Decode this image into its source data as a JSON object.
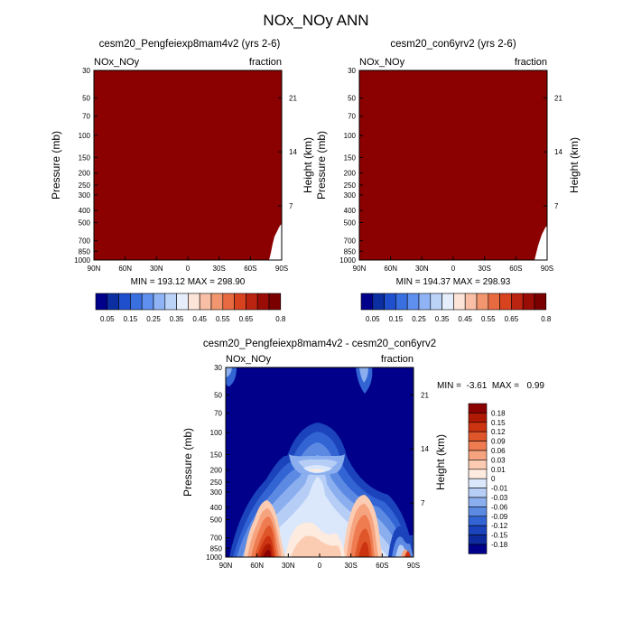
{
  "main_title": "NOx_NOy ANN",
  "chart_data": [
    {
      "type": "heatmap",
      "title": "cesm20_Pengfeiexp8mam4v2 (yrs 2-6)",
      "left_label": "NOx_NOy",
      "right_label": "fraction",
      "ylabel": "Pressure (mb)",
      "ylabel_right": "Height (km)",
      "x_ticks": [
        "90N",
        "60N",
        "30N",
        "0",
        "30S",
        "60S",
        "90S"
      ],
      "y_ticks": [
        "30",
        "50",
        "70",
        "100",
        "150",
        "200",
        "250",
        "300",
        "400",
        "500",
        "700",
        "850",
        "1000"
      ],
      "height_ticks": [
        "21",
        "14",
        "7"
      ],
      "stats": "MIN = 193.12  MAX = 298.90",
      "field_color": "#8b0000",
      "colorbar_labels": [
        "0.05",
        "0.15",
        "0.25",
        "0.35",
        "0.45",
        "0.55",
        "0.65",
        "0.8"
      ]
    },
    {
      "type": "heatmap",
      "title": "cesm20_con6yrv2 (yrs 2-6)",
      "left_label": "NOx_NOy",
      "right_label": "fraction",
      "ylabel": "Pressure (mb)",
      "ylabel_right": "Height (km)",
      "x_ticks": [
        "90N",
        "60N",
        "30N",
        "0",
        "30S",
        "60S",
        "90S"
      ],
      "y_ticks": [
        "30",
        "50",
        "70",
        "100",
        "150",
        "200",
        "250",
        "300",
        "400",
        "500",
        "700",
        "850",
        "1000"
      ],
      "height_ticks": [
        "21",
        "14",
        "7"
      ],
      "stats": "MIN = 194.37  MAX = 298.93",
      "field_color": "#8b0000",
      "colorbar_labels": [
        "0.05",
        "0.15",
        "0.25",
        "0.35",
        "0.45",
        "0.55",
        "0.65",
        "0.8"
      ]
    },
    {
      "type": "heatmap",
      "title": "cesm20_Pengfeiexp8mam4v2 - cesm20_con6yrv2",
      "left_label": "NOx_NOy",
      "right_label": "fraction",
      "ylabel": "Pressure (mb)",
      "ylabel_right": "Height (km)",
      "x_ticks": [
        "90N",
        "60N",
        "30N",
        "0",
        "30S",
        "60S",
        "90S"
      ],
      "y_ticks": [
        "30",
        "50",
        "70",
        "100",
        "150",
        "200",
        "250",
        "300",
        "400",
        "500",
        "700",
        "850",
        "1000"
      ],
      "height_ticks": [
        "21",
        "14",
        "7"
      ],
      "stats": "MIN =  -3.61  MAX =   0.99",
      "colorbar_labels": [
        "0.18",
        "0.15",
        "0.12",
        "0.09",
        "0.06",
        "0.03",
        "0.01",
        "0",
        "-0.01",
        "-0.03",
        "-0.06",
        "-0.09",
        "-0.12",
        "-0.15",
        "-0.18"
      ]
    }
  ],
  "colors": {
    "top_colorbar": [
      "#00008b",
      "#0b2fa0",
      "#1f4fcc",
      "#3a6fe0",
      "#5f8fef",
      "#8fb3f5",
      "#bcd3f8",
      "#e6eefc",
      "#fde4d8",
      "#f8bfa6",
      "#f2966f",
      "#e86a41",
      "#d8431f",
      "#bb2410",
      "#9a0c06",
      "#7a0000"
    ],
    "diff_colorbar": [
      "#8b0000",
      "#b01a05",
      "#cc3311",
      "#e0562b",
      "#ef7b50",
      "#f6a47f",
      "#fbcbb2",
      "#fdebe0",
      "#dbe8fb",
      "#b6cdf6",
      "#8aaeee",
      "#5c8ae3",
      "#3364d4",
      "#1b43bb",
      "#0d2a9e",
      "#00008b"
    ]
  }
}
